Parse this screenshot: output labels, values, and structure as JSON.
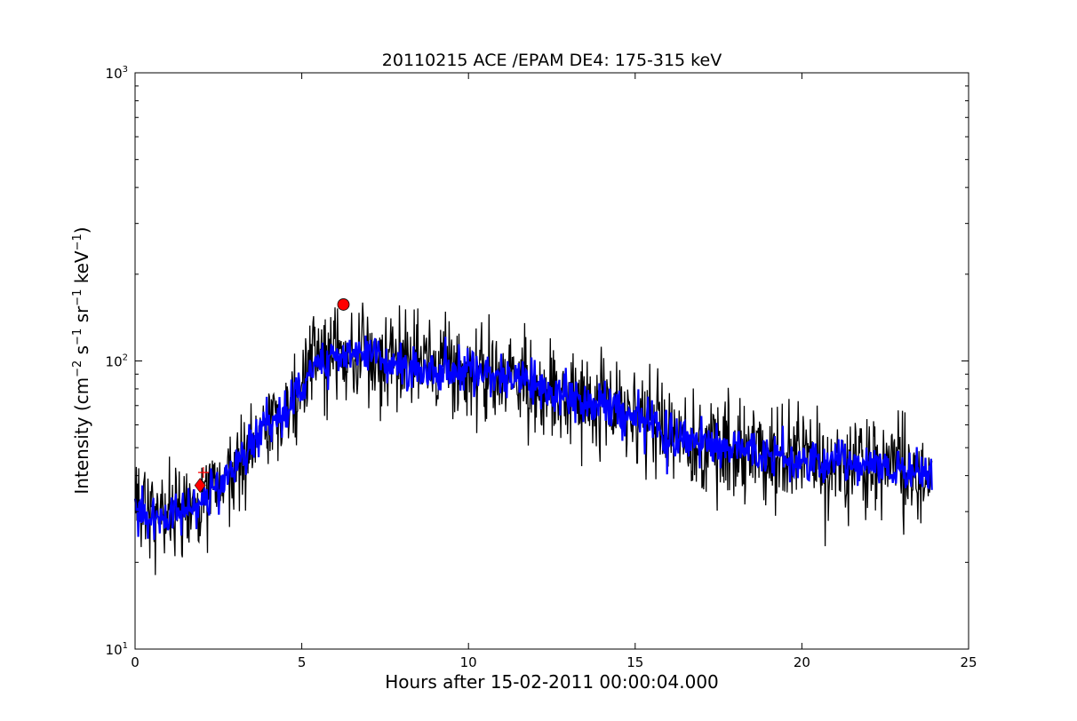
{
  "chart_data": {
    "type": "line",
    "title": "20110215 ACE /EPAM DE4: 175-315 keV",
    "xlabel": "Hours after 15-02-2011 00:00:04.000",
    "ylabel": "Intensity (cm⁻² s⁻¹ sr⁻¹ keV⁻¹)",
    "ylabel_parts": {
      "prefix": "Intensity (cm",
      "exp1": "−2",
      "s": " s",
      "exp2": "−1",
      "sr": " sr",
      "exp3": "−1",
      "kev": " keV",
      "exp4": "−1",
      "suffix": ")"
    },
    "xlim": [
      0,
      25
    ],
    "ylim": [
      10,
      1000
    ],
    "yscale": "log",
    "grid": false,
    "x_ticks": [
      0,
      5,
      10,
      15,
      20,
      25
    ],
    "x_tick_labels": [
      "0",
      "5",
      "10",
      "15",
      "20",
      "25"
    ],
    "y_ticks": [
      10,
      100,
      1000
    ],
    "y_tick_labels": [
      {
        "base": "10",
        "exp": "1"
      },
      {
        "base": "10",
        "exp": "2"
      },
      {
        "base": "10",
        "exp": "3"
      }
    ],
    "raw_series": {
      "color": "#000000",
      "x_range": [
        0,
        23.9
      ],
      "samples": 1300,
      "envelope_x": [
        0,
        1,
        2,
        3,
        3.5,
        4,
        4.5,
        5,
        5.5,
        6,
        7,
        8,
        9,
        10,
        11,
        12,
        12.5,
        13,
        14,
        15,
        16,
        17,
        18,
        19,
        20,
        21,
        22,
        23,
        23.9
      ],
      "envelope_y": [
        30,
        29,
        32,
        43,
        52,
        60,
        65,
        82,
        100,
        105,
        103,
        97,
        93,
        92,
        90,
        82,
        76,
        72,
        70,
        65,
        56,
        52,
        50,
        48,
        45,
        44,
        43,
        42,
        40
      ]
    },
    "smoothed_series": {
      "color": "#0000ff",
      "x": [
        0,
        1,
        2,
        3,
        3.5,
        4,
        4.5,
        5,
        5.5,
        6,
        7,
        8,
        9,
        10,
        11,
        12,
        12.5,
        13,
        14,
        15,
        16,
        17,
        18,
        19,
        20,
        21,
        22,
        23,
        23.9
      ],
      "y": [
        30,
        29,
        32,
        43,
        52,
        60,
        65,
        82,
        100,
        105,
        103,
        97,
        93,
        92,
        90,
        82,
        76,
        72,
        70,
        65,
        56,
        52,
        50,
        48,
        45,
        44,
        43,
        42,
        40
      ]
    },
    "markers": [
      {
        "type": "diamond",
        "color": "#ff0000",
        "x": 1.95,
        "y": 37
      },
      {
        "type": "circle",
        "color": "#ff0000",
        "x": 6.25,
        "y": 157
      }
    ],
    "onset_cross": {
      "color": "#ff0000",
      "x": 2.05,
      "y": 41
    }
  }
}
